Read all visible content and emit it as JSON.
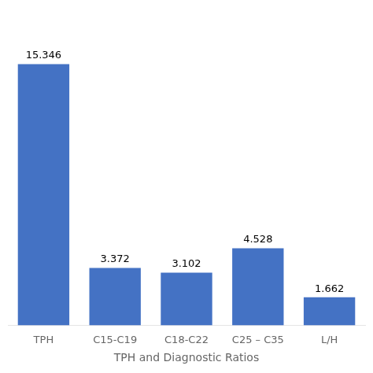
{
  "chart_data": {
    "type": "bar",
    "xlabel": "TPH and Diagnostic Ratios",
    "categories": [
      "TPH",
      "C15-C19",
      "C18-C22",
      "C25 – C35",
      "L/H"
    ],
    "values": [
      15.346,
      3.372,
      3.102,
      4.528,
      1.662
    ],
    "color": "#4472C4",
    "ylim": [
      0,
      18
    ],
    "grid": false,
    "legend": false,
    "tick_labels": "x",
    "data_labels": true
  }
}
